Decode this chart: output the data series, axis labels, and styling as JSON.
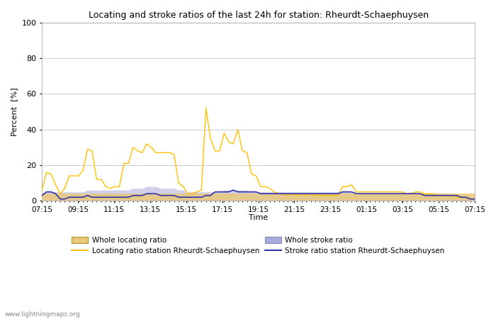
{
  "title": "Locating and stroke ratios of the last 24h for station: Rheurdt-Schaephuysen",
  "xlabel": "Time",
  "ylabel": "Percent  [%]",
  "ylim": [
    0,
    100
  ],
  "yticks": [
    0,
    20,
    40,
    60,
    80,
    100
  ],
  "watermark": "www.lightningmaps.org",
  "x_labels": [
    "07:15",
    "09:15",
    "11:15",
    "13:15",
    "15:15",
    "17:15",
    "19:15",
    "21:15",
    "23:15",
    "01:15",
    "03:15",
    "05:15",
    "07:15"
  ],
  "locating_ratio": [
    6,
    16,
    15,
    9,
    4,
    7,
    14,
    14,
    14,
    17,
    29,
    28,
    12,
    12,
    8,
    7,
    8,
    8,
    21,
    21,
    30,
    28,
    27,
    32,
    30,
    27,
    27,
    27,
    27,
    26,
    10,
    8,
    4,
    4,
    5,
    6,
    52,
    35,
    28,
    28,
    38,
    33,
    32,
    40,
    28,
    27,
    15,
    14,
    8,
    8,
    7,
    5,
    4,
    4,
    3,
    4,
    3,
    4,
    3,
    4,
    3,
    3,
    3,
    3,
    3,
    3,
    8,
    8,
    9,
    5,
    5,
    5,
    5,
    5,
    5,
    5,
    5,
    5,
    5,
    5,
    4,
    4,
    5,
    5,
    4,
    4,
    4,
    3,
    3,
    3,
    3,
    2,
    2,
    2,
    1,
    1
  ],
  "stroke_ratio": [
    3,
    5,
    5,
    4,
    1,
    1,
    2,
    2,
    2,
    2,
    3,
    2,
    2,
    2,
    2,
    2,
    2,
    2,
    2,
    2,
    3,
    3,
    3,
    4,
    4,
    4,
    3,
    3,
    3,
    3,
    2,
    2,
    2,
    2,
    2,
    2,
    3,
    3,
    5,
    5,
    5,
    5,
    6,
    5,
    5,
    5,
    5,
    5,
    4,
    4,
    4,
    4,
    4,
    4,
    4,
    4,
    4,
    4,
    4,
    4,
    4,
    4,
    4,
    4,
    4,
    4,
    5,
    5,
    5,
    4,
    4,
    4,
    4,
    4,
    4,
    4,
    4,
    4,
    4,
    4,
    4,
    4,
    4,
    4,
    3,
    3,
    3,
    3,
    3,
    3,
    3,
    3,
    2,
    2,
    1,
    1
  ],
  "whole_locating": [
    4,
    4,
    4,
    4,
    4,
    4,
    4,
    4,
    4,
    4,
    4,
    4,
    4,
    4,
    4,
    4,
    4,
    4,
    4,
    4,
    4,
    4,
    4,
    4,
    4,
    4,
    4,
    4,
    4,
    4,
    4,
    4,
    4,
    4,
    4,
    4,
    4,
    4,
    4,
    4,
    4,
    4,
    4,
    4,
    4,
    4,
    4,
    4,
    4,
    4,
    4,
    4,
    4,
    4,
    4,
    4,
    4,
    4,
    4,
    4,
    4,
    4,
    4,
    4,
    4,
    4,
    4,
    4,
    4,
    4,
    4,
    4,
    4,
    4,
    4,
    4,
    4,
    4,
    4,
    4,
    4,
    4,
    4,
    4,
    4,
    4,
    4,
    4,
    4,
    4,
    4,
    4,
    4,
    4,
    4,
    4
  ],
  "whole_stroke": [
    4,
    5,
    5,
    5,
    5,
    5,
    5,
    5,
    5,
    5,
    6,
    6,
    6,
    6,
    6,
    6,
    6,
    6,
    6,
    6,
    7,
    7,
    7,
    8,
    8,
    8,
    7,
    7,
    7,
    7,
    6,
    6,
    5,
    5,
    5,
    5,
    5,
    5,
    5,
    5,
    6,
    6,
    6,
    6,
    6,
    6,
    5,
    5,
    5,
    5,
    5,
    5,
    5,
    5,
    5,
    5,
    5,
    5,
    5,
    5,
    5,
    5,
    5,
    5,
    5,
    5,
    5,
    5,
    5,
    4,
    4,
    4,
    4,
    4,
    4,
    4,
    4,
    4,
    4,
    4,
    4,
    4,
    4,
    4,
    4,
    4,
    4,
    4,
    4,
    4,
    4,
    3,
    3,
    3,
    2,
    2
  ],
  "color_locating_line": "#FFC000",
  "color_stroke_line": "#3333AA",
  "color_locating_fill": "#E8C87A",
  "color_stroke_fill": "#AAAADD",
  "background_color": "#FFFFFF",
  "plot_bg_color": "#FFFFFF",
  "grid_color": "#CCCCCC"
}
